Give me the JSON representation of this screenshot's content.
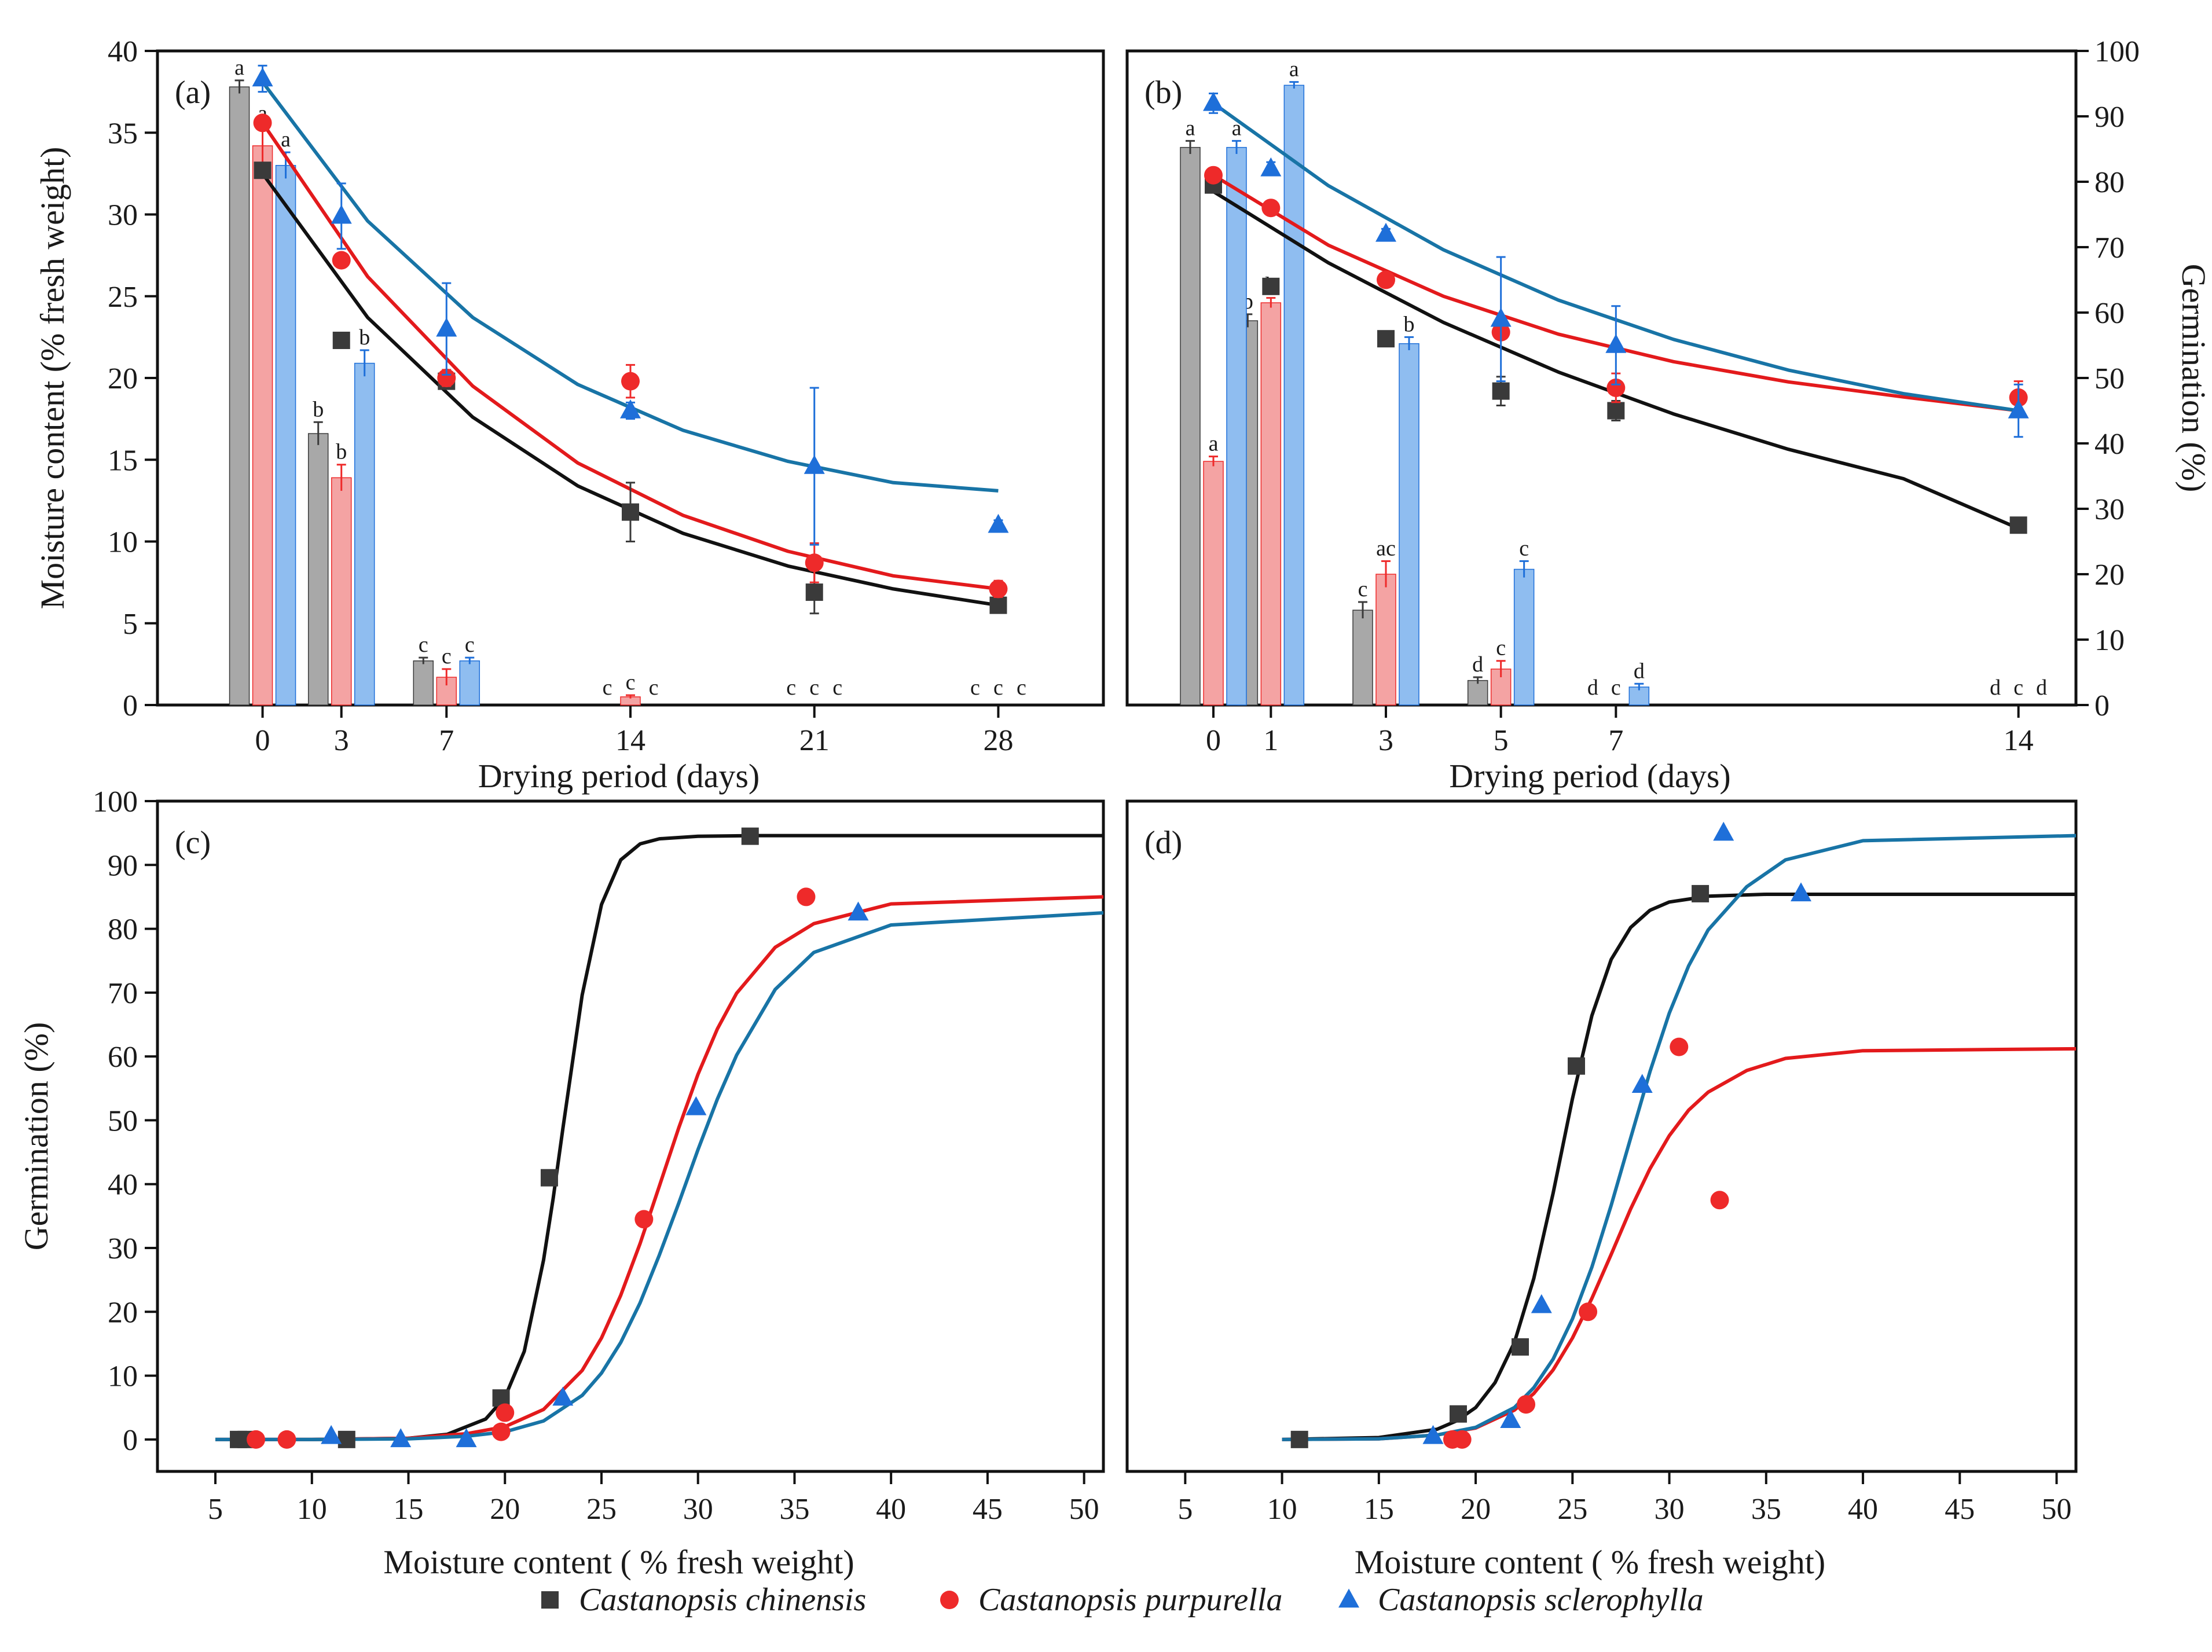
{
  "species": [
    {
      "name": "Castanopsis chinensis",
      "color": "#3a3a3a",
      "bar_color": "#a8a8a8",
      "marker": "square"
    },
    {
      "name": "Castanopsis purpurella",
      "color": "#ee2a2a",
      "bar_color": "#f4a3a3",
      "marker": "circle"
    },
    {
      "name": "Castanopsis sclerophylla",
      "color": "#1e6fd9",
      "bar_color": "#8fbdf0",
      "marker": "triangle"
    }
  ],
  "curve_colors": [
    "#111111",
    "#e31a1c",
    "#1874a6"
  ],
  "chart_data": [
    {
      "id": "a",
      "type": "bar",
      "panel_label": "(a)",
      "xlabel": "Drying period (days)",
      "ylabel": "Moisture content (% fresh weight)",
      "y2label": "",
      "categories": [
        "0",
        "3",
        "7",
        "14",
        "21",
        "28"
      ],
      "cat_pos": [
        0,
        3,
        7,
        14,
        21,
        28
      ],
      "xlim": [
        -4,
        32
      ],
      "ylim": [
        0,
        40
      ],
      "yticks": [
        0,
        5,
        10,
        15,
        20,
        25,
        30,
        35,
        40
      ],
      "y2lim": null,
      "y2ticks": [],
      "bars": {
        "series": [
          {
            "name": "Castanopsis chinensis",
            "values": [
              37.8,
              16.6,
              2.7,
              0,
              0,
              0
            ],
            "errors": [
              0.4,
              0.7,
              0.2,
              0,
              0,
              0
            ],
            "letters": [
              "a",
              "b",
              "c",
              "c",
              "c",
              "c"
            ]
          },
          {
            "name": "Castanopsis purpurella",
            "values": [
              34.2,
              13.9,
              1.7,
              0.5,
              0,
              0
            ],
            "errors": [
              1.2,
              0.8,
              0.5,
              0.1,
              0,
              0
            ],
            "letters": [
              "a",
              "b",
              "c",
              "c",
              "c",
              "c"
            ]
          },
          {
            "name": "Castanopsis sclerophylla",
            "values": [
              33.0,
              20.9,
              2.7,
              0,
              0,
              0
            ],
            "errors": [
              0.8,
              0.8,
              0.2,
              0,
              0,
              0
            ],
            "letters": [
              "a",
              "b",
              "c",
              "c",
              "c",
              "c"
            ]
          }
        ]
      },
      "points": {
        "axis": "left",
        "series": [
          {
            "name": "Castanopsis chinensis",
            "x": [
              0,
              3,
              7,
              14,
              21,
              28
            ],
            "y": [
              32.7,
              22.3,
              19.8,
              11.8,
              6.9,
              6.1
            ],
            "errors": [
              0,
              0,
              0.4,
              1.8,
              1.3,
              0.2
            ]
          },
          {
            "name": "Castanopsis purpurella",
            "x": [
              0,
              3,
              7,
              14,
              21,
              28
            ],
            "y": [
              35.6,
              27.2,
              20.0,
              19.8,
              8.7,
              7.1
            ],
            "errors": [
              0,
              0,
              0.5,
              1.0,
              1.2,
              0.5
            ]
          },
          {
            "name": "Castanopsis sclerophylla",
            "x": [
              0,
              3,
              7,
              14,
              21,
              28
            ],
            "y": [
              38.3,
              29.9,
              23.0,
              18.0,
              14.6,
              11.0
            ],
            "errors": [
              0.8,
              2.0,
              2.8,
              0.5,
              4.8,
              0.3
            ]
          }
        ]
      },
      "fits": {
        "axis": "left",
        "series": [
          {
            "name": "Castanopsis chinensis",
            "x": [
              0,
              4,
              8,
              12,
              16,
              20,
              24,
              28
            ],
            "y": [
              32.5,
              23.7,
              17.6,
              13.4,
              10.5,
              8.5,
              7.1,
              6.1
            ]
          },
          {
            "name": "Castanopsis purpurella",
            "x": [
              0,
              4,
              8,
              12,
              16,
              20,
              24,
              28
            ],
            "y": [
              35.6,
              26.2,
              19.5,
              14.8,
              11.6,
              9.4,
              7.9,
              7.1
            ]
          },
          {
            "name": "Castanopsis sclerophylla",
            "x": [
              0,
              4,
              8,
              12,
              16,
              20,
              24,
              28
            ],
            "y": [
              38.1,
              29.6,
              23.7,
              19.6,
              16.8,
              14.9,
              13.6,
              13.1
            ]
          }
        ]
      }
    },
    {
      "id": "b",
      "type": "bar",
      "panel_label": "(b)",
      "xlabel": "Drying period (days)",
      "ylabel": "",
      "y2label": "Germination (%)",
      "categories": [
        "0",
        "1",
        "3",
        "5",
        "7",
        "14"
      ],
      "cat_pos": [
        0,
        1,
        3,
        5,
        7,
        14
      ],
      "xlim": [
        -1.5,
        15
      ],
      "ylim": [
        0,
        40
      ],
      "yticks": [],
      "y2lim": [
        0,
        100
      ],
      "y2ticks": [
        0,
        10,
        20,
        30,
        40,
        50,
        60,
        70,
        80,
        90,
        100
      ],
      "bars": {
        "series": [
          {
            "name": "Castanopsis chinensis",
            "values": [
              34.1,
              23.5,
              5.8,
              1.5,
              0,
              0
            ],
            "errors": [
              0.4,
              0.4,
              0.5,
              0.2,
              0,
              0
            ],
            "letters": [
              "a",
              "b",
              "c",
              "d",
              "d",
              "d"
            ]
          },
          {
            "name": "Castanopsis purpurella",
            "values": [
              14.9,
              24.6,
              8.0,
              2.2,
              0,
              0
            ],
            "errors": [
              0.3,
              0.3,
              0.8,
              0.5,
              0,
              0
            ],
            "letters": [
              "a",
              "b",
              "ac",
              "c",
              "c",
              "c"
            ]
          },
          {
            "name": "Castanopsis sclerophylla",
            "values": [
              34.1,
              37.9,
              22.1,
              8.3,
              1.1,
              0
            ],
            "errors": [
              0.4,
              0.2,
              0.4,
              0.5,
              0.2,
              0
            ],
            "letters": [
              "a",
              "a",
              "b",
              "c",
              "d",
              "d"
            ]
          }
        ]
      },
      "points": {
        "axis": "right",
        "series": [
          {
            "name": "Castanopsis chinensis",
            "x": [
              0,
              1,
              3,
              5,
              7,
              14
            ],
            "y": [
              79.5,
              64,
              56,
              48,
              45,
              27.5
            ],
            "errors": [
              0.8,
              0.8,
              0.8,
              2.2,
              1.5,
              0.8
            ]
          },
          {
            "name": "Castanopsis purpurella",
            "x": [
              0,
              1,
              3,
              5,
              7,
              14
            ],
            "y": [
              81,
              76,
              65,
              57,
              48.5,
              47
            ],
            "errors": [
              0.8,
              0.8,
              0.8,
              0.8,
              2.2,
              2.5
            ]
          },
          {
            "name": "Castanopsis sclerophylla",
            "x": [
              0,
              1,
              3,
              5,
              7,
              14
            ],
            "y": [
              92,
              82,
              72,
              59,
              55,
              45
            ],
            "errors": [
              1.5,
              1,
              0.8,
              9.5,
              6,
              4
            ]
          }
        ]
      },
      "fits": {
        "axis": "right",
        "series": [
          {
            "name": "Castanopsis chinensis",
            "x": [
              0,
              2,
              4,
              6,
              8,
              10,
              12,
              14
            ],
            "y": [
              78.5,
              67.6,
              58.5,
              50.9,
              44.5,
              39.1,
              34.6,
              27.0
            ]
          },
          {
            "name": "Castanopsis purpurella",
            "x": [
              0,
              2,
              4,
              6,
              8,
              10,
              12,
              14
            ],
            "y": [
              81,
              70.3,
              62.5,
              56.7,
              52.5,
              49.4,
              47.1,
              45.0
            ]
          },
          {
            "name": "Castanopsis sclerophylla",
            "x": [
              0,
              2,
              4,
              6,
              8,
              10,
              12,
              14
            ],
            "y": [
              92,
              79.4,
              69.6,
              61.9,
              55.9,
              51.2,
              47.6,
              45.0
            ]
          }
        ]
      }
    },
    {
      "id": "c",
      "type": "scatter",
      "panel_label": "(c)",
      "xlabel": "Moisture content ( % fresh weight)",
      "ylabel": "Germination (%)",
      "xlim": [
        2,
        51
      ],
      "xticks": [
        5,
        10,
        15,
        20,
        25,
        30,
        35,
        40,
        45,
        50
      ],
      "ylim": [
        -5,
        100
      ],
      "yticks": [
        0,
        10,
        20,
        30,
        40,
        50,
        60,
        70,
        80,
        90,
        100
      ],
      "points": {
        "series": [
          {
            "name": "Castanopsis chinensis",
            "x": [
              6.2,
              6.6,
              11.8,
              19.8,
              22.3,
              32.7
            ],
            "y": [
              0,
              0,
              0,
              6.5,
              41,
              94.5
            ]
          },
          {
            "name": "Castanopsis purpurella",
            "x": [
              7.1,
              8.7,
              19.8,
              20.0,
              27.2,
              35.6
            ],
            "y": [
              0,
              0,
              1.2,
              4.2,
              34.5,
              85
            ]
          },
          {
            "name": "Castanopsis sclerophylla",
            "x": [
              11.0,
              14.6,
              18.0,
              23.0,
              29.9,
              38.3
            ],
            "y": [
              0.5,
              0,
              0,
              6.5,
              52,
              82.5
            ]
          }
        ]
      },
      "fits": {
        "series": [
          {
            "name": "Castanopsis chinensis",
            "x": [
              5,
              10,
              15,
              17,
              19,
              20,
              21,
              22,
              22.5,
              23,
              24,
              25,
              26,
              27,
              28,
              30,
              33,
              40,
              51
            ],
            "y": [
              0,
              0,
              0.2,
              0.8,
              3.2,
              6.6,
              13.8,
              28.1,
              37.8,
              48.7,
              69.6,
              83.8,
              90.8,
              93.3,
              94.1,
              94.5,
              94.6,
              94.6,
              94.6
            ]
          },
          {
            "name": "Castanopsis purpurella",
            "x": [
              5,
              10,
              15,
              18,
              20,
              22,
              24,
              25,
              26,
              27,
              28,
              29,
              30,
              31,
              32,
              34,
              36,
              40,
              51
            ],
            "y": [
              0,
              0,
              0.2,
              0.9,
              2.0,
              4.7,
              10.8,
              15.9,
              22.6,
              30.7,
              39.7,
              48.8,
              57.2,
              64.3,
              69.9,
              77.1,
              80.8,
              83.9,
              85.0
            ]
          },
          {
            "name": "Castanopsis sclerophylla",
            "x": [
              5,
              10,
              15,
              18,
              20,
              22,
              24,
              25,
              26,
              27,
              28,
              29,
              30,
              31,
              32,
              34,
              36,
              40,
              51
            ],
            "y": [
              0,
              0,
              0.1,
              0.5,
              1.2,
              2.9,
              6.9,
              10.4,
              15.2,
              21.4,
              28.9,
              37.0,
              45.4,
              53.3,
              60.2,
              70.5,
              76.3,
              80.6,
              82.5
            ]
          }
        ]
      }
    },
    {
      "id": "d",
      "type": "scatter",
      "panel_label": "(d)",
      "xlabel": "Moisture content ( % fresh weight)",
      "ylabel": "",
      "xlim": [
        2,
        51
      ],
      "xticks": [
        5,
        10,
        15,
        20,
        25,
        30,
        35,
        40,
        45,
        50
      ],
      "ylim": [
        -5,
        100
      ],
      "yticks": [],
      "points": {
        "series": [
          {
            "name": "Castanopsis chinensis",
            "x": [
              10.9,
              19.1,
              22.3,
              25.2,
              31.6
            ],
            "y": [
              0,
              4,
              14.5,
              58.5,
              85.5
            ]
          },
          {
            "name": "Castanopsis purpurella",
            "x": [
              18.8,
              19.3,
              22.6,
              25.8,
              30.5,
              32.6
            ],
            "y": [
              0,
              0,
              5.5,
              20,
              61.5,
              37.5
            ]
          },
          {
            "name": "Castanopsis sclerophylla",
            "x": [
              17.8,
              21.8,
              23.4,
              28.6,
              32.8,
              36.8
            ],
            "y": [
              0.5,
              3,
              21,
              55.5,
              95,
              85.5
            ]
          }
        ]
      },
      "fits": {
        "series": [
          {
            "name": "Castanopsis chinensis",
            "x": [
              10,
              15,
              18,
              19,
              20,
              21,
              22,
              23,
              24,
              25,
              26,
              27,
              28,
              29,
              30,
              32,
              35,
              40,
              51
            ],
            "y": [
              0,
              0.3,
              1.6,
              2.9,
              5.0,
              8.9,
              15.2,
              25.2,
              38.6,
              53.4,
              66.4,
              75.2,
              80.2,
              82.9,
              84.2,
              85.1,
              85.4,
              85.4,
              85.4
            ]
          },
          {
            "name": "Castanopsis purpurella",
            "x": [
              10,
              15,
              18,
              20,
              22,
              23,
              24,
              25,
              26,
              27,
              28,
              29,
              30,
              31,
              32,
              34,
              36,
              40,
              51
            ],
            "y": [
              0,
              0.1,
              0.7,
              1.8,
              4.6,
              7.2,
              10.9,
              15.9,
              22.1,
              29.0,
              36.1,
              42.4,
              47.6,
              51.6,
              54.4,
              57.8,
              59.7,
              60.9,
              61.2
            ]
          },
          {
            "name": "Castanopsis sclerophylla",
            "x": [
              10,
              15,
              18,
              20,
              22,
              23,
              24,
              25,
              26,
              27,
              28,
              29,
              30,
              31,
              32,
              34,
              36,
              40,
              51
            ],
            "y": [
              0,
              0.1,
              0.7,
              1.9,
              5.0,
              8.1,
              12.6,
              18.9,
              27.0,
              36.7,
              47.2,
              57.6,
              66.8,
              74.2,
              79.8,
              86.6,
              90.8,
              93.8,
              94.6
            ]
          }
        ]
      }
    }
  ]
}
